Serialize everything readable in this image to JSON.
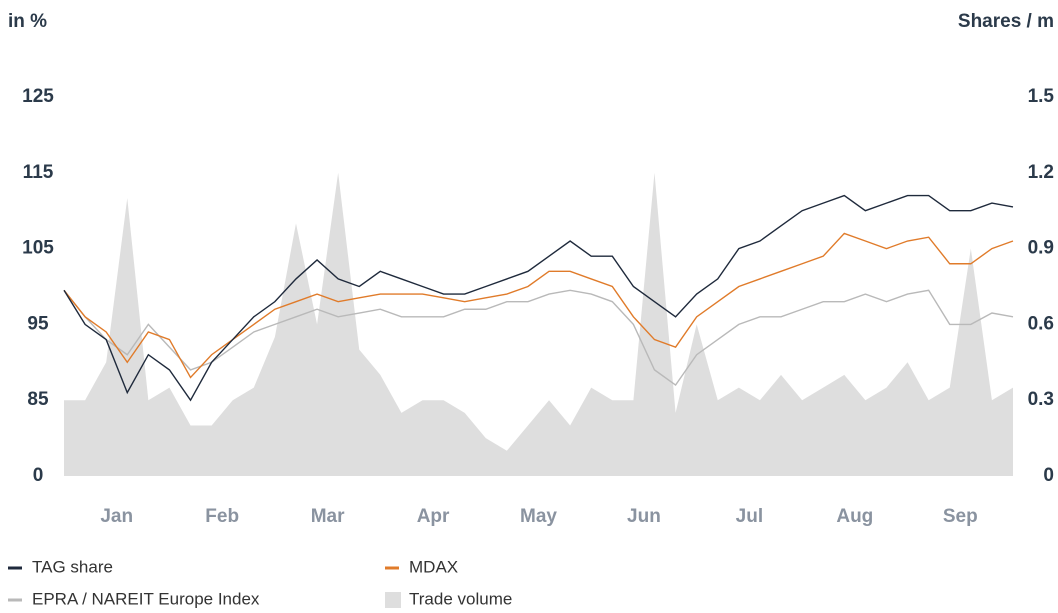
{
  "chart_data": {
    "type": "line",
    "y_axis_label": "in %",
    "y2_axis_label": "Shares / m",
    "y_break_label": "0",
    "x": [
      0,
      0.2,
      0.4,
      0.6,
      0.8,
      1,
      1.2,
      1.4,
      1.6,
      1.8,
      2,
      2.2,
      2.4,
      2.6,
      2.8,
      3,
      3.2,
      3.4,
      3.6,
      3.8,
      4,
      4.2,
      4.4,
      4.6,
      4.8,
      5,
      5.2,
      5.4,
      5.6,
      5.8,
      6,
      6.2,
      6.4,
      6.6,
      6.8,
      7,
      7.2,
      7.4,
      7.6,
      7.8,
      8,
      8.2,
      8.4,
      8.6,
      8.8,
      9
    ],
    "xlim": [
      0,
      9
    ],
    "xticks": [
      {
        "value": 0.5,
        "label": "Jan"
      },
      {
        "value": 1.5,
        "label": "Feb"
      },
      {
        "value": 2.5,
        "label": "Mar"
      },
      {
        "value": 3.5,
        "label": "Apr"
      },
      {
        "value": 4.5,
        "label": "May"
      },
      {
        "value": 5.5,
        "label": "Jun"
      },
      {
        "value": 6.5,
        "label": "Jul"
      },
      {
        "value": 7.5,
        "label": "Aug"
      },
      {
        "value": 8.5,
        "label": "Sep"
      }
    ],
    "ylim": [
      75,
      125
    ],
    "yticks": [
      85,
      95,
      105,
      115,
      125
    ],
    "y2lim": [
      0,
      1.5
    ],
    "y2ticks": [
      0,
      0.3,
      0.6,
      0.9,
      1.2,
      1.5
    ],
    "series": [
      {
        "name": "Trade volume",
        "color": "#dedede",
        "style": "area",
        "axis": "y2",
        "values": [
          0.3,
          0.3,
          0.45,
          1.1,
          0.3,
          0.35,
          0.2,
          0.2,
          0.3,
          0.35,
          0.55,
          1.0,
          0.6,
          1.2,
          0.5,
          0.4,
          0.25,
          0.3,
          0.3,
          0.25,
          0.15,
          0.1,
          0.2,
          0.3,
          0.2,
          0.35,
          0.3,
          0.3,
          1.2,
          0.25,
          0.6,
          0.3,
          0.35,
          0.3,
          0.4,
          0.3,
          0.35,
          0.4,
          0.3,
          0.35,
          0.45,
          0.3,
          0.35,
          0.9,
          0.3,
          0.35
        ]
      },
      {
        "name": "EPRA / NAREIT Europe Index",
        "color": "#b9b9b9",
        "style": "line",
        "values": [
          99.5,
          96,
          93,
          91,
          95,
          92,
          89,
          90,
          92,
          94,
          95,
          96,
          97,
          96,
          96.5,
          97,
          96,
          96,
          96,
          97,
          97,
          98,
          98,
          99,
          99.5,
          99,
          98,
          95,
          89,
          87,
          91,
          93,
          95,
          96,
          96,
          97,
          98,
          98,
          99,
          98,
          99,
          99.5,
          95,
          95,
          96.5,
          96
        ]
      },
      {
        "name": "MDAX",
        "color": "#e07b2a",
        "style": "line",
        "values": [
          99.5,
          96,
          94,
          90,
          94,
          93,
          88,
          91,
          93,
          95,
          97,
          98,
          99,
          98,
          98.5,
          99,
          99,
          99,
          98.5,
          98,
          98.5,
          99,
          100,
          102,
          102,
          101,
          100,
          96,
          93,
          92,
          96,
          98,
          100,
          101,
          102,
          103,
          104,
          107,
          106,
          105,
          106,
          106.5,
          103,
          103,
          105,
          106
        ]
      },
      {
        "name": "TAG share",
        "color": "#1f2a3c",
        "style": "line",
        "values": [
          99.5,
          95,
          93,
          86,
          91,
          89,
          85,
          90,
          93,
          96,
          98,
          101,
          103.5,
          101,
          100,
          102,
          101,
          100,
          99,
          99,
          100,
          101,
          102,
          104,
          106,
          104,
          104,
          100,
          98,
          96,
          99,
          101,
          105,
          106,
          108,
          110,
          111,
          112,
          110,
          111,
          112,
          112,
          110,
          110,
          111,
          110.5
        ]
      }
    ]
  }
}
